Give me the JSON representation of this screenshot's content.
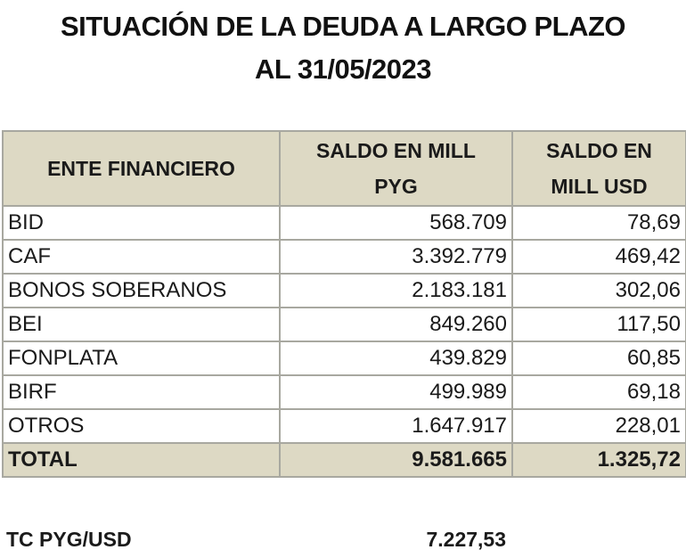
{
  "title": {
    "line1": "SITUACIÓN DE LA DEUDA A LARGO PLAZO",
    "line2": "AL 31/05/2023"
  },
  "table": {
    "headers": {
      "entity": "ENTE FINANCIERO",
      "pyg_line1": "SALDO EN MILL",
      "pyg_line2": "PYG",
      "usd_line1": "SALDO EN",
      "usd_line2": "MILL USD"
    },
    "rows": [
      {
        "entity": "BID",
        "pyg": "568.709",
        "usd": "78,69"
      },
      {
        "entity": "CAF",
        "pyg": "3.392.779",
        "usd": "469,42"
      },
      {
        "entity": "BONOS SOBERANOS",
        "pyg": "2.183.181",
        "usd": "302,06"
      },
      {
        "entity": "BEI",
        "pyg": "849.260",
        "usd": "117,50"
      },
      {
        "entity": "FONPLATA",
        "pyg": "439.829",
        "usd": "60,85"
      },
      {
        "entity": "BIRF",
        "pyg": "499.989",
        "usd": "69,18"
      },
      {
        "entity": "OTROS",
        "pyg": "1.647.917",
        "usd": "228,01"
      }
    ],
    "total": {
      "entity": "TOTAL",
      "pyg": "9.581.665",
      "usd": "1.325,72"
    }
  },
  "exchange_rate": {
    "label": "TC PYG/USD",
    "value": "7.227,53"
  },
  "colors": {
    "header_bg": "#ddd9c4",
    "border": "#a8a8a0"
  }
}
